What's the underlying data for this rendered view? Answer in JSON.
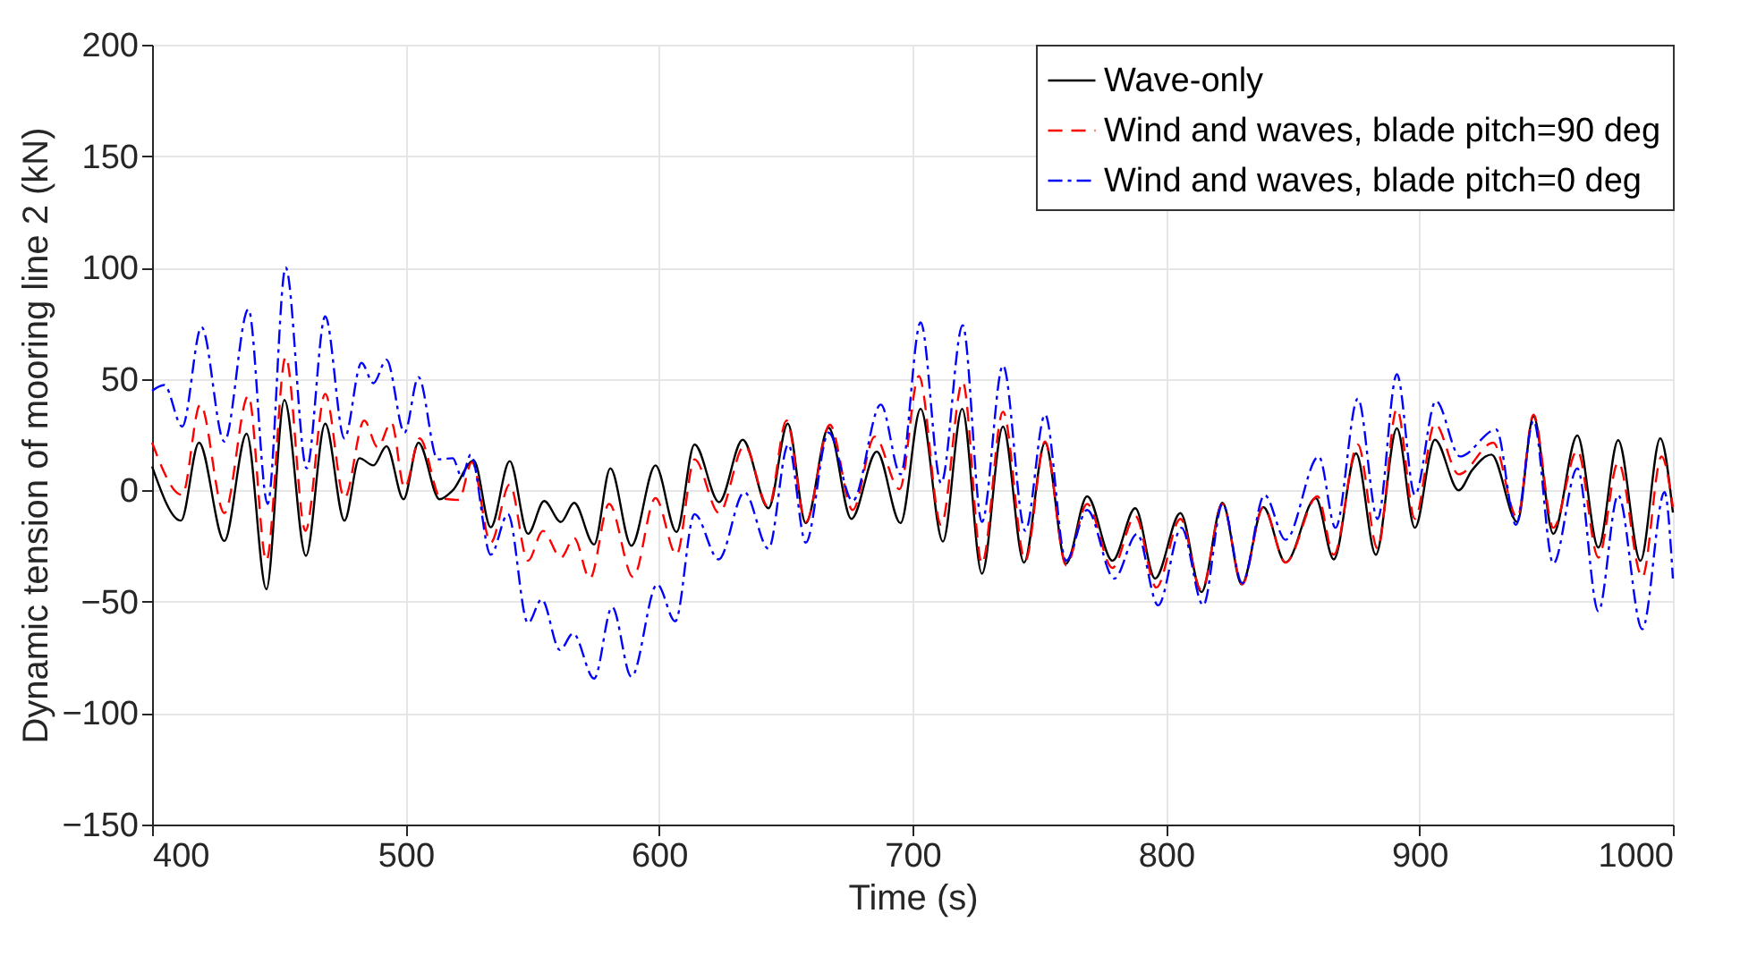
{
  "chart_data": {
    "type": "line",
    "xlabel": "Time (s)",
    "ylabel": "Dynamic tension  of mooring line 2 (kN)",
    "xlim": [
      400,
      1000
    ],
    "ylim": [
      -150,
      200
    ],
    "xticks": [
      400,
      500,
      600,
      700,
      800,
      900,
      1000
    ],
    "yticks": [
      -150,
      -100,
      -50,
      0,
      50,
      100,
      150,
      200
    ],
    "grid": true,
    "legend": "top right",
    "marker": "none",
    "series": [
      {
        "name": "Wave-only",
        "color": "#000000",
        "line_style": "solid",
        "x": [
          400,
          411.4,
          418.5,
          428.5,
          437.3,
          445.1,
          452.2,
          460.7,
          468.3,
          475.9,
          481.8,
          487.3,
          492.5,
          499.2,
          505.1,
          513.4,
          518.6,
          526.9,
          533.6,
          541.1,
          548.3,
          554.7,
          561.3,
          566.5,
          574.4,
          580.8,
          589.1,
          598.6,
          606.9,
          614,
          623.7,
          633,
          643.2,
          650.8,
          657.9,
          666.9,
          675.9,
          685.9,
          695.3,
          703.2,
          712,
          719.6,
          727.4,
          735.7,
          744,
          752.3,
          760.6,
          768.9,
          778.9,
          787.9,
          795.7,
          805.7,
          814,
          822.3,
          829.9,
          838.4,
          847.2,
          859.1,
          866.2,
          875,
          882.8,
          891.1,
          898.2,
          906.1,
          915.5,
          920.8,
          928.4,
          938.6,
          945,
          952.8,
          962.3,
          970.6,
          978.4,
          987.2,
          995,
          1000
        ],
        "values": [
          10.7,
          -13.6,
          21.4,
          -22.7,
          25.4,
          -44.4,
          40.6,
          -29.4,
          29.9,
          -13.6,
          14.4,
          11.2,
          19.8,
          -4,
          21.4,
          -4,
          0,
          13.4,
          -16.6,
          13.1,
          -19.5,
          -4.8,
          -14.2,
          -5.6,
          -24.3,
          9.9,
          -24.9,
          11.2,
          -18.7,
          20.6,
          -5.3,
          22.7,
          -8,
          29.9,
          -14.7,
          28.1,
          -12.8,
          17.4,
          -14.7,
          36.6,
          -23,
          36.6,
          -37.4,
          28.6,
          -32.4,
          21.4,
          -32.9,
          -2.7,
          -31.6,
          -8,
          -39.6,
          -10.2,
          -45.7,
          -5.6,
          -42.2,
          -7.5,
          -32.4,
          -3.5,
          -31,
          16.6,
          -28.9,
          27.8,
          -16.8,
          22.7,
          0,
          9.1,
          16,
          -14.2,
          33.2,
          -19.5,
          24.6,
          -25.7,
          22.5,
          -31.6,
          23.3,
          -10
        ]
      },
      {
        "name": "Wind and waves, blade pitch=90 deg",
        "color": "#ff0000",
        "line_style": "dashed",
        "x": [
          400,
          411.9,
          419,
          428.5,
          438,
          445.1,
          452.7,
          460.5,
          468.3,
          475.9,
          483.7,
          489,
          494.4,
          499.6,
          505.6,
          513.9,
          521,
          526.2,
          533.6,
          541.1,
          548.3,
          554.2,
          561.3,
          566.5,
          572.7,
          580.3,
          589.8,
          598.6,
          606.9,
          614,
          623.7,
          633.7,
          643.2,
          650.3,
          657.9,
          667.4,
          676.4,
          685.1,
          694.9,
          702.5,
          711.3,
          719.8,
          727.4,
          735.7,
          744.5,
          752.3,
          760.6,
          768.9,
          778.9,
          787.9,
          796.2,
          805.7,
          814,
          822.3,
          830.1,
          838.4,
          847.2,
          859.8,
          866.2,
          875.7,
          883.5,
          891.1,
          898.2,
          906.1,
          915.5,
          929.1,
          938.6,
          945,
          952.8,
          962.3,
          970.6,
          978.4,
          987.9,
          995.5,
          1000
        ],
        "values": [
          21.4,
          -2.1,
          38.5,
          -10.2,
          42.5,
          -31.6,
          59.9,
          -18.2,
          43.3,
          -3.5,
          31.3,
          19.3,
          30.5,
          1.1,
          23.3,
          -3.5,
          -4.3,
          12.6,
          -23.5,
          2.7,
          -31.6,
          -18.2,
          -30.2,
          -21.4,
          -39.6,
          -6.1,
          -39,
          -3.5,
          -28.9,
          13.9,
          -10.2,
          20.1,
          -7.5,
          31.3,
          -14.2,
          29.4,
          -8.8,
          24.1,
          0.5,
          51.3,
          -15.5,
          48.7,
          -32.9,
          35.3,
          -31.6,
          21.9,
          -33.7,
          -6.1,
          -34.8,
          -11.5,
          -43.6,
          -12.8,
          -44.9,
          -6.1,
          -42.2,
          -7.5,
          -32.4,
          -2.7,
          -28.9,
          20.6,
          -26.2,
          36.6,
          -12.8,
          29.9,
          7.2,
          21.4,
          -12.3,
          34,
          -16.8,
          17.9,
          -30.2,
          12.6,
          -39,
          15.2,
          -7.5
        ]
      },
      {
        "name": "Wind and waves, blade pitch=0 deg",
        "color": "#0000ff",
        "line_style": "dashdot",
        "x": [
          400,
          404.8,
          411.9,
          419.5,
          428.5,
          438,
          445.6,
          452.7,
          461,
          468.3,
          475.9,
          482.6,
          487.3,
          492.5,
          499.6,
          505.1,
          512.7,
          518.6,
          522.2,
          525.7,
          533.6,
          540.4,
          548.3,
          553.7,
          560.9,
          566.1,
          574.4,
          581.5,
          589.1,
          599.3,
          606.4,
          614,
          623.5,
          633.7,
          643.2,
          651,
          657.9,
          666.9,
          676.4,
          687.5,
          695.3,
          703.2,
          711.3,
          719.8,
          727.4,
          735.7,
          744.5,
          752.3,
          760.6,
          768.9,
          779.6,
          788.6,
          796.9,
          806.1,
          814.7,
          822.3,
          830.1,
          838.9,
          847.2,
          860.3,
          866.9,
          875.7,
          883.5,
          891.1,
          898.2,
          906.5,
          916,
          930.3,
          938.1,
          945,
          952.8,
          962.3,
          970.6,
          978.4,
          987.9,
          996.7,
          1000
        ],
        "values": [
          44.7,
          47.3,
          28.6,
          73.3,
          21.9,
          81.3,
          -6.1,
          100,
          9.9,
          78.1,
          23.3,
          57.2,
          48.1,
          58.6,
          25.9,
          50.8,
          13.9,
          14.4,
          5.9,
          16,
          -28.9,
          -10.7,
          -59.6,
          -48.9,
          -71.7,
          -64.2,
          -84.5,
          -52.4,
          -83.7,
          -42.2,
          -58.8,
          -10.7,
          -31,
          -0.8,
          -26.2,
          20.6,
          -23.5,
          25.9,
          -4.8,
          38.5,
          7.2,
          75.4,
          3.2,
          74.1,
          -14.2,
          56.1,
          -18.2,
          34,
          -31.6,
          -8.8,
          -39.6,
          -19.5,
          -51.6,
          -16.8,
          -51.6,
          -6.1,
          -41.7,
          -2.1,
          -22.2,
          15.2,
          -16.8,
          41.2,
          -12.8,
          52.1,
          -2.1,
          40.1,
          15.2,
          27.3,
          -15.5,
          31.3,
          -32.9,
          9.9,
          -54.3,
          -2.1,
          -62.3,
          -0.8,
          -39.6
        ]
      }
    ]
  }
}
